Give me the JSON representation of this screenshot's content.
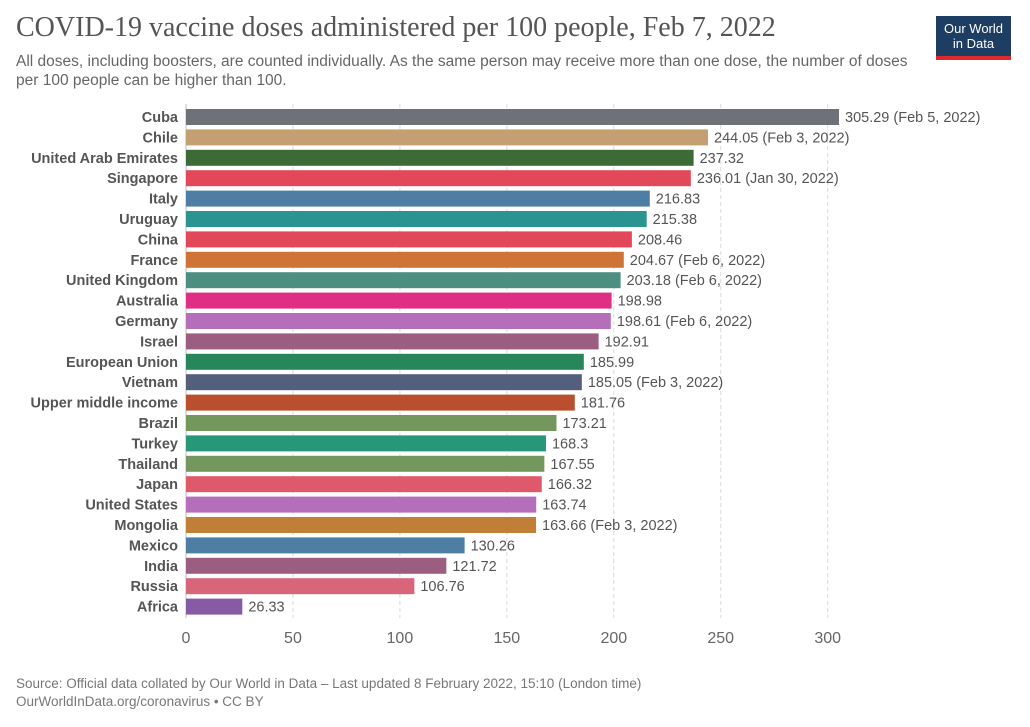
{
  "header": {
    "title": "COVID-19 vaccine doses administered per 100 people, Feb 7, 2022",
    "subtitle": "All doses, including boosters, are counted individually. As the same person may receive more than one dose, the number of doses per 100 people can be higher than 100.",
    "logo_line1": "Our World",
    "logo_line2": "in Data"
  },
  "footer": {
    "source": "Source: Official data collated by Our World in Data – Last updated 8 February 2022, 15:10 (London time)",
    "credit": "OurWorldInData.org/coronavirus • CC BY"
  },
  "colors": {
    "logo_bg": "#1d3d63",
    "logo_accent": "#e0272c"
  },
  "chart_data": {
    "type": "bar",
    "orientation": "horizontal",
    "xlim": [
      0,
      305.29
    ],
    "xticks": [
      0,
      50,
      100,
      150,
      200,
      250,
      300
    ],
    "grid": "vertical dashed",
    "categories": [
      "Cuba",
      "Chile",
      "United Arab Emirates",
      "Singapore",
      "Italy",
      "Uruguay",
      "China",
      "France",
      "United Kingdom",
      "Australia",
      "Germany",
      "Israel",
      "European Union",
      "Vietnam",
      "Upper middle income",
      "Brazil",
      "Turkey",
      "Thailand",
      "Japan",
      "United States",
      "Mongolia",
      "Mexico",
      "India",
      "Russia",
      "Africa"
    ],
    "values": [
      305.29,
      244.05,
      237.32,
      236.01,
      216.83,
      215.38,
      208.46,
      204.67,
      203.18,
      198.98,
      198.61,
      192.91,
      185.99,
      185.05,
      181.76,
      173.21,
      168.3,
      167.55,
      166.32,
      163.74,
      163.66,
      130.26,
      121.72,
      106.76,
      26.33
    ],
    "value_labels": [
      "305.29 (Feb 5, 2022)",
      "244.05 (Feb 3, 2022)",
      "237.32",
      "236.01 (Jan 30, 2022)",
      "216.83",
      "215.38",
      "208.46",
      "204.67 (Feb 6, 2022)",
      "203.18 (Feb 6, 2022)",
      "198.98",
      "198.61 (Feb 6, 2022)",
      "192.91",
      "185.99",
      "185.05 (Feb 3, 2022)",
      "181.76",
      "173.21",
      "168.3",
      "167.55",
      "166.32",
      "163.74",
      "163.66 (Feb 3, 2022)",
      "130.26",
      "121.72",
      "106.76",
      "26.33"
    ],
    "bar_colors": [
      "#6e7178",
      "#c49f72",
      "#3c6b38",
      "#e2475a",
      "#4f7ea5",
      "#2a9590",
      "#e2475a",
      "#cd7436",
      "#4c8f80",
      "#de2f84",
      "#b56eba",
      "#9b5e81",
      "#27875b",
      "#535f7c",
      "#b94f2c",
      "#74975d",
      "#269879",
      "#74975d",
      "#e0596b",
      "#b56eba",
      "#c07e36",
      "#4f7ea5",
      "#9b5e81",
      "#d9657a",
      "#865aa5"
    ]
  }
}
